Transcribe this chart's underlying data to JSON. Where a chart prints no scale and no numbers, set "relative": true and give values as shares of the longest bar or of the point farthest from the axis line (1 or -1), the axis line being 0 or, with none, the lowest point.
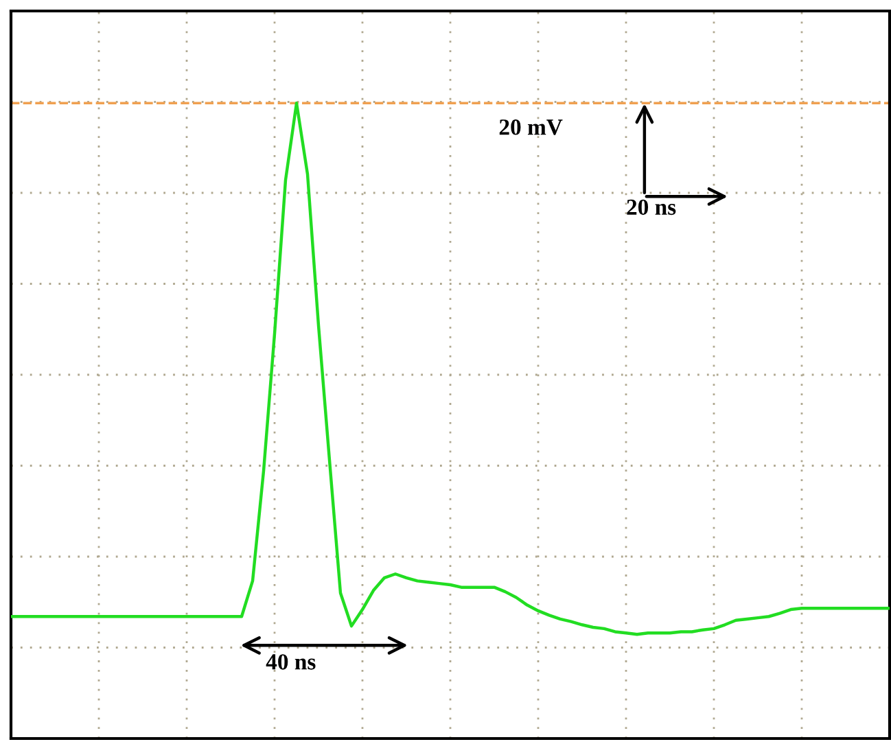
{
  "chart_data": {
    "type": "line",
    "relative": true,
    "grid": true,
    "line_style": "solid",
    "marker": "none",
    "categories": [
      null,
      null,
      null,
      null,
      null,
      null,
      null,
      null,
      null,
      null,
      null,
      null,
      null,
      null,
      null,
      null,
      null,
      null,
      null,
      null,
      null,
      null,
      null,
      null,
      null,
      null,
      null,
      null,
      null,
      null,
      null,
      null,
      null,
      null,
      null,
      null,
      null,
      null,
      null,
      null,
      null,
      null,
      null,
      null,
      null,
      null,
      null,
      null,
      null,
      null,
      null,
      null,
      null,
      null,
      null,
      null,
      null,
      null,
      null,
      null,
      null,
      null,
      null,
      null,
      null,
      null,
      null,
      null,
      null,
      null,
      null,
      null,
      null,
      null,
      null,
      null,
      null,
      null,
      null,
      null,
      null
    ],
    "series": [
      {
        "color": "#22dd22",
        "values": [
          0.192,
          0.192,
          0.192,
          0.192,
          0.192,
          0.192,
          0.192,
          0.192,
          0.192,
          0.192,
          0.192,
          0.192,
          0.192,
          0.192,
          0.192,
          0.192,
          0.192,
          0.192,
          0.192,
          0.192,
          0.192,
          0.192,
          0.248,
          0.421,
          0.637,
          0.879,
          1,
          0.888,
          0.65,
          0.438,
          0.229,
          0.177,
          0.203,
          0.233,
          0.253,
          0.259,
          0.253,
          0.248,
          0.246,
          0.244,
          0.242,
          0.238,
          0.238,
          0.238,
          0.238,
          0.231,
          0.222,
          0.21,
          0.201,
          0.194,
          0.188,
          0.184,
          0.179,
          0.175,
          0.173,
          0.168,
          0.166,
          0.164,
          0.166,
          0.166,
          0.166,
          0.168,
          0.168,
          0.171,
          0.173,
          0.179,
          0.186,
          0.188,
          0.19,
          0.192,
          0.197,
          0.203,
          0.205,
          0.205,
          0.205,
          0.205,
          0.205,
          0.205,
          0.205,
          0.205,
          0.205
        ]
      }
    ],
    "ref_lines": [
      {
        "axis": "y",
        "value": 1,
        "color": "#f0a050",
        "line_style": "dashed"
      }
    ],
    "annotations": [
      "20 mV",
      "20 ns",
      "40 ns"
    ]
  }
}
